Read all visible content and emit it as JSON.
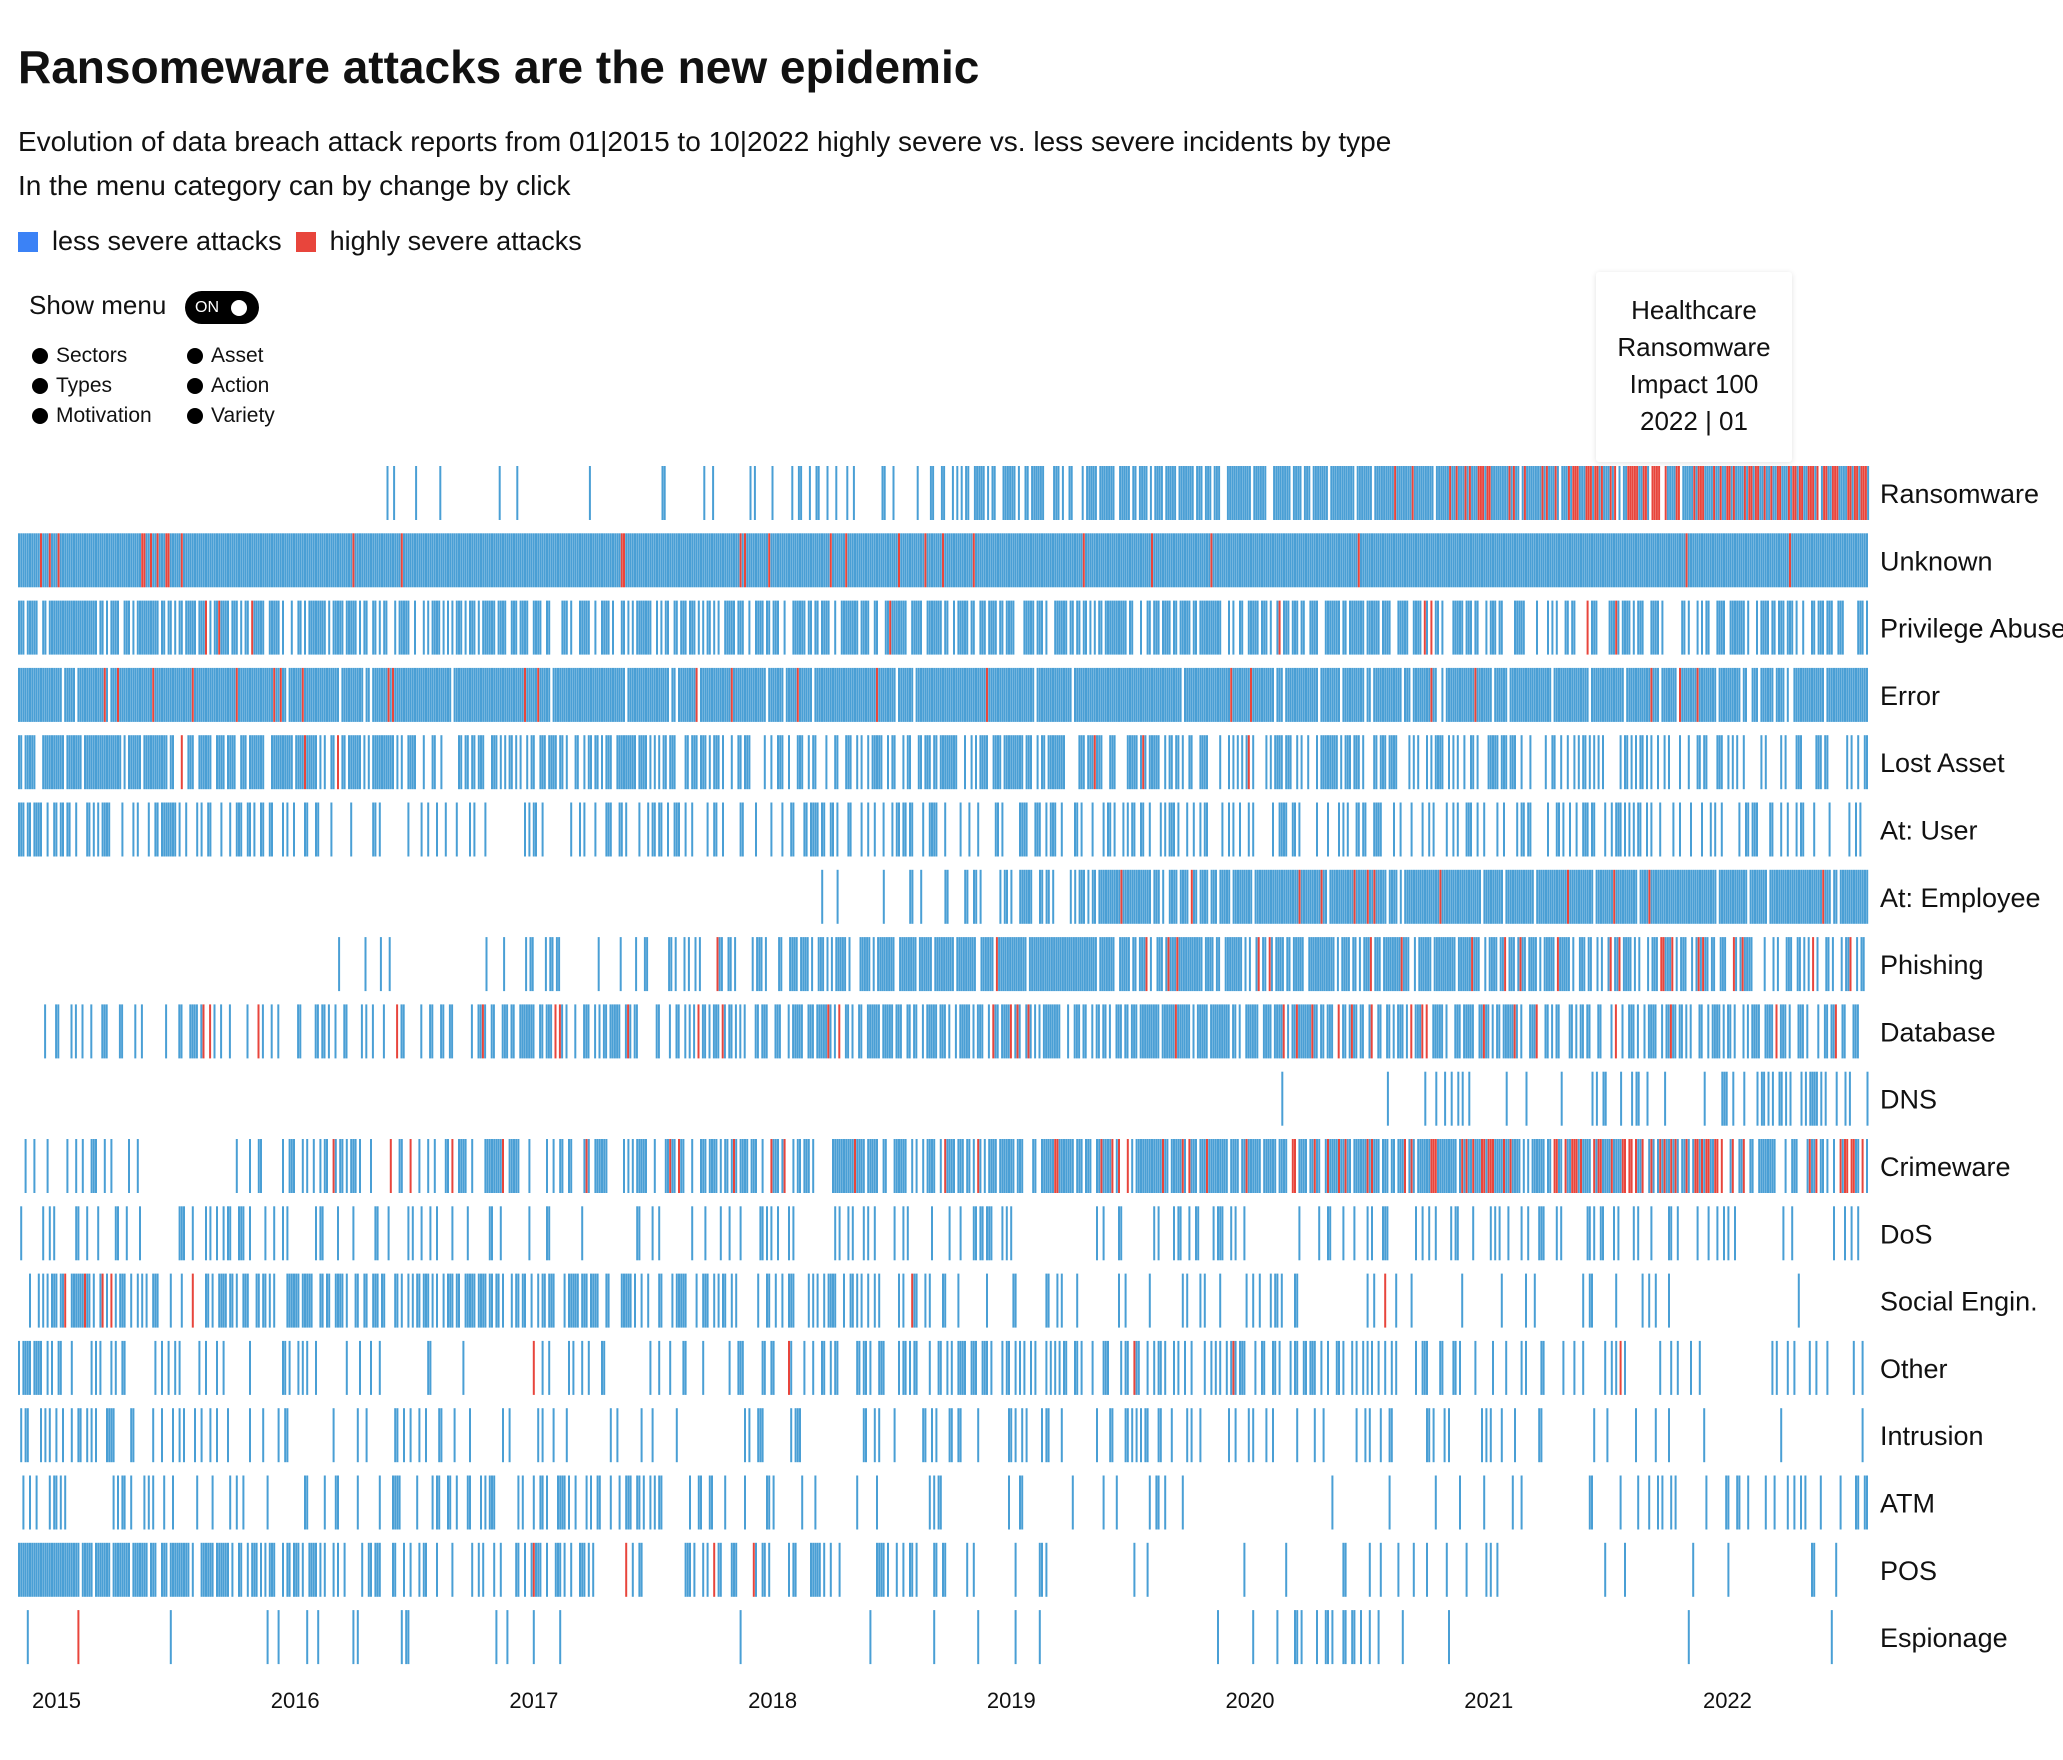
{
  "title": "Ransomeware attacks are the new epidemic",
  "subtitle": "Evolution of data breach attack reports from 01|2015 to 10|2022 highly severe vs. less severe incidents by type",
  "subtitle2": "In the menu category can by change by click",
  "legend": {
    "less_label": "less severe attacks",
    "high_label": "highly severe attacks",
    "less_color": "#4a9fd5",
    "high_color": "#e8453c",
    "less_swatch_color": "#3b82f6",
    "high_swatch_color": "#e8453c"
  },
  "menu": {
    "label": "Show menu",
    "toggle_label": "ON",
    "col1": [
      "Sectors",
      "Types",
      "Motivation"
    ],
    "col2": [
      "Asset",
      "Action",
      "Variety"
    ]
  },
  "tooltip": {
    "line1": "Healthcare",
    "line2": "Ransomware",
    "line3": "Impact 100",
    "line4": "2022 | 01"
  },
  "chart_data": {
    "type": "heatmap",
    "x_range": [
      "2015-01",
      "2022-10"
    ],
    "years": [
      "2015",
      "2016",
      "2017",
      "2018",
      "2019",
      "2020",
      "2021",
      "2022"
    ],
    "rows": [
      {
        "name": "Ransomware",
        "start": 2016.0,
        "density": [
          0.0,
          0.0,
          0.03,
          0.08,
          0.15,
          0.32,
          0.55,
          0.75,
          0.9,
          0.92,
          0.95,
          0.96
        ],
        "red_share": [
          0,
          0,
          0,
          0,
          0,
          0,
          0,
          0,
          0.05,
          0.2,
          0.45,
          0.5
        ]
      },
      {
        "name": "Unknown",
        "start": 2015.0,
        "density": [
          1,
          1,
          1,
          1,
          1,
          1,
          1,
          1,
          1,
          1,
          1,
          1
        ],
        "red_share": [
          0.06,
          0.05,
          0.05,
          0.04,
          0.03,
          0.03,
          0.02,
          0.02,
          0.02,
          0.02,
          0.02,
          0.01
        ]
      },
      {
        "name": "Privilege Abuse",
        "start": 2015.0,
        "density": [
          0.75,
          0.65,
          0.6,
          0.6,
          0.62,
          0.7,
          0.7,
          0.7,
          0.65,
          0.6,
          0.55,
          0.5
        ],
        "red_share": [
          0.01,
          0.02,
          0.01,
          0.01,
          0.01,
          0.01,
          0.01,
          0.01,
          0.01,
          0.01,
          0.01,
          0.01
        ]
      },
      {
        "name": "Error",
        "start": 2015.0,
        "density": [
          0.97,
          0.95,
          0.95,
          0.96,
          0.96,
          0.97,
          0.97,
          0.95,
          0.9,
          0.9,
          0.9,
          0.9
        ],
        "red_share": [
          0.03,
          0.04,
          0.03,
          0.02,
          0.02,
          0.01,
          0.01,
          0.01,
          0.01,
          0.01,
          0.01,
          0.01
        ]
      },
      {
        "name": "Lost Asset",
        "start": 2015.0,
        "density": [
          0.85,
          0.75,
          0.6,
          0.55,
          0.55,
          0.55,
          0.6,
          0.6,
          0.5,
          0.5,
          0.4,
          0.35
        ],
        "red_share": [
          0.01,
          0.01,
          0.01,
          0.01,
          0.01,
          0.01,
          0.01,
          0.02,
          0.02,
          0.02,
          0.01,
          0.01
        ]
      },
      {
        "name": "At: User",
        "start": 2015.0,
        "density": [
          0.45,
          0.4,
          0.35,
          0.35,
          0.3,
          0.35,
          0.35,
          0.4,
          0.4,
          0.4,
          0.35,
          0.35
        ],
        "red_share": [
          0,
          0,
          0,
          0,
          0,
          0,
          0,
          0,
          0.01,
          0.01,
          0,
          0
        ]
      },
      {
        "name": "At: Employee",
        "start": 2017.6,
        "density": [
          0,
          0,
          0,
          0,
          0,
          0.1,
          0.3,
          0.9,
          0.95,
          0.95,
          0.95,
          0.95
        ],
        "red_share": [
          0,
          0,
          0,
          0,
          0,
          0,
          0,
          0.02,
          0.03,
          0.03,
          0.02,
          0.02
        ]
      },
      {
        "name": "Phishing",
        "start": 2016.0,
        "density": [
          0,
          0,
          0.05,
          0.2,
          0.4,
          0.7,
          0.85,
          0.8,
          0.7,
          0.75,
          0.65,
          0.55
        ],
        "red_share": [
          0,
          0,
          0,
          0,
          0.01,
          0.03,
          0.05,
          0.06,
          0.06,
          0.08,
          0.1,
          0.1
        ]
      },
      {
        "name": "Database",
        "start": 2015.1,
        "density": [
          0.2,
          0.3,
          0.35,
          0.45,
          0.5,
          0.6,
          0.7,
          0.75,
          0.7,
          0.6,
          0.55,
          0.5
        ],
        "red_share": [
          0.03,
          0.06,
          0.1,
          0.12,
          0.12,
          0.1,
          0.06,
          0.05,
          0.05,
          0.05,
          0.04,
          0.03
        ]
      },
      {
        "name": "DNS",
        "start": 2020.2,
        "density": [
          0,
          0,
          0,
          0,
          0,
          0,
          0,
          0,
          0.05,
          0.15,
          0.3,
          0.4
        ],
        "red_share": [
          0,
          0,
          0,
          0,
          0,
          0,
          0,
          0,
          0,
          0,
          0,
          0
        ]
      },
      {
        "name": "Crimeware",
        "start": 2015.0,
        "density": [
          0.2,
          0.25,
          0.3,
          0.45,
          0.6,
          0.65,
          0.75,
          0.8,
          0.85,
          0.9,
          0.85,
          0.5
        ],
        "red_share": [
          0,
          0.02,
          0.05,
          0.08,
          0.08,
          0.06,
          0.05,
          0.08,
          0.15,
          0.3,
          0.45,
          0.3
        ]
      },
      {
        "name": "DoS",
        "start": 2015.0,
        "density": [
          0.2,
          0.25,
          0.2,
          0.15,
          0.15,
          0.12,
          0.15,
          0.18,
          0.2,
          0.2,
          0.15,
          0.15
        ],
        "red_share": [
          0,
          0,
          0,
          0,
          0,
          0,
          0,
          0,
          0,
          0,
          0,
          0
        ]
      },
      {
        "name": "Social Engin.",
        "start": 2015.0,
        "density": [
          0.45,
          0.55,
          0.6,
          0.5,
          0.45,
          0.3,
          0.2,
          0.15,
          0.12,
          0.12,
          0.12,
          0.1
        ],
        "red_share": [
          0.08,
          0.03,
          0.02,
          0.01,
          0.01,
          0.02,
          0.02,
          0.02,
          0.04,
          0.05,
          0.04,
          0.02
        ]
      },
      {
        "name": "Other",
        "start": 2015.0,
        "density": [
          0.35,
          0.25,
          0.15,
          0.12,
          0.2,
          0.3,
          0.45,
          0.4,
          0.35,
          0.2,
          0.15,
          0.12
        ],
        "red_share": [
          0,
          0,
          0,
          0.02,
          0.02,
          0.03,
          0.03,
          0.02,
          0.03,
          0.03,
          0.02,
          0.01
        ]
      },
      {
        "name": "Intrusion",
        "start": 2015.0,
        "density": [
          0.2,
          0.15,
          0.15,
          0.12,
          0.2,
          0.2,
          0.18,
          0.15,
          0.15,
          0.12,
          0.1,
          0.08
        ],
        "red_share": [
          0,
          0,
          0,
          0,
          0,
          0,
          0,
          0,
          0,
          0,
          0,
          0
        ]
      },
      {
        "name": "ATM",
        "start": 2015.0,
        "density": [
          0.2,
          0.15,
          0.2,
          0.35,
          0.25,
          0.2,
          0.12,
          0.1,
          0.05,
          0.08,
          0.12,
          0.15
        ],
        "red_share": [
          0,
          0,
          0,
          0,
          0,
          0,
          0,
          0,
          0,
          0,
          0,
          0
        ]
      },
      {
        "name": "POS",
        "start": 2015.0,
        "density": [
          0.85,
          0.6,
          0.35,
          0.3,
          0.3,
          0.2,
          0.12,
          0.1,
          0.05,
          0.05,
          0.05,
          0.03
        ],
        "red_share": [
          0,
          0,
          0,
          0.04,
          0.03,
          0.02,
          0.01,
          0,
          0,
          0,
          0,
          0
        ]
      },
      {
        "name": "Espionage",
        "start": 2015.0,
        "density": [
          0.04,
          0.03,
          0.03,
          0.03,
          0.02,
          0.02,
          0.02,
          0.02,
          0.12,
          0.03,
          0.02,
          0.01
        ],
        "red_share": [
          0.4,
          0,
          0,
          0,
          0,
          0,
          0,
          0,
          0,
          0,
          0,
          0
        ]
      }
    ]
  }
}
